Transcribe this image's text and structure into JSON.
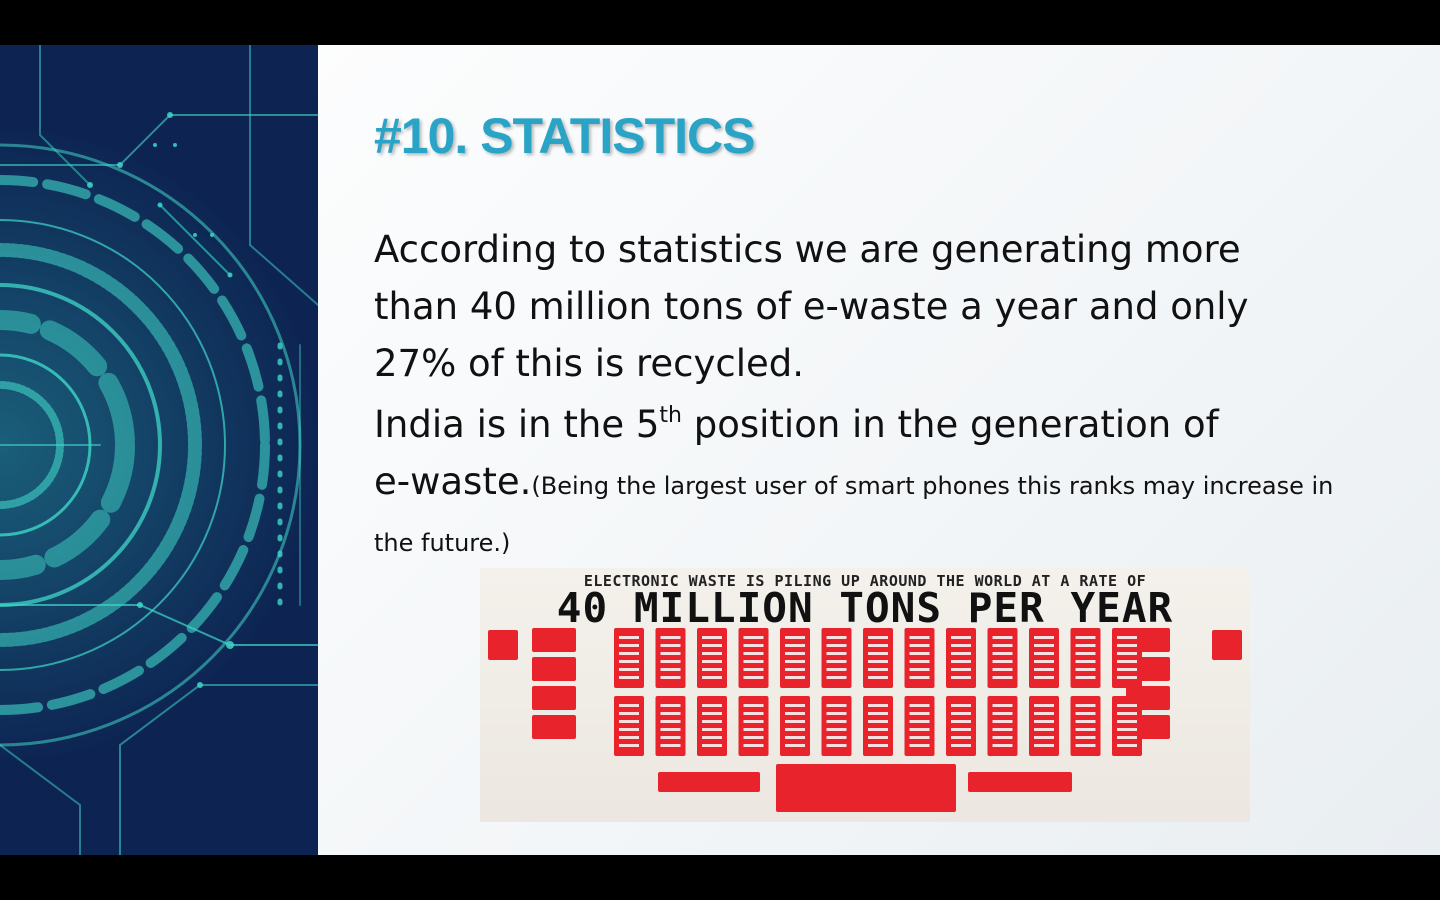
{
  "slide": {
    "title": "#10. STATISTICS",
    "paragraph1": "According to statistics we are generating more than 40 million tons of e-waste a year and only 27% of this is recycled.",
    "paragraph2": {
      "part1": "India is in the 5",
      "superscript": "th",
      "part2": " position in the generation of",
      "part3": "e-waste.",
      "note": "(Being the largest user of smart phones this ranks may increase in the future.)"
    }
  },
  "infographic": {
    "top_text": "ELECTRONIC WASTE IS PILING UP AROUND THE WORLD AT A RATE OF",
    "main_text": "40 MILLION TONS PER YEAR",
    "accent_color": "#e8232b"
  },
  "colors": {
    "title": "#29a3c6",
    "deco_background": "#0d2452",
    "deco_lines": "#3fd6c8"
  }
}
